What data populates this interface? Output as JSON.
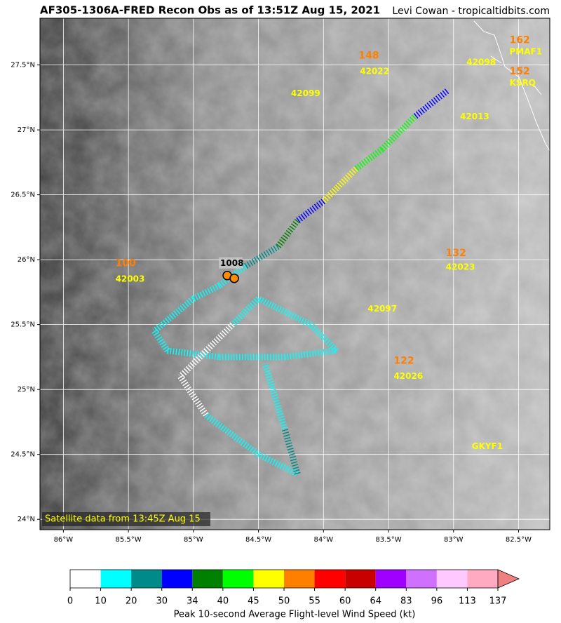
{
  "chart_data": {
    "type": "recon-map",
    "title": "AF305-1306A-FRED Recon Obs as of 13:51Z Aug 15, 2021",
    "credit": "Levi Cowan - tropicaltidbits.com",
    "note": "Satellite data from 13:45Z Aug 15",
    "xlim": [
      -86.18,
      -82.26
    ],
    "ylim": [
      23.92,
      27.86
    ],
    "xticks": [
      {
        "value": -86,
        "label": "86°W"
      },
      {
        "value": -85.5,
        "label": "85.5°W"
      },
      {
        "value": -85,
        "label": "85°W"
      },
      {
        "value": -84.5,
        "label": "84.5°W"
      },
      {
        "value": -84,
        "label": "84°W"
      },
      {
        "value": -83.5,
        "label": "83.5°W"
      },
      {
        "value": -83,
        "label": "83°W"
      },
      {
        "value": -82.5,
        "label": "82.5°W"
      }
    ],
    "yticks": [
      {
        "value": 24,
        "label": "24°N"
      },
      {
        "value": 24.5,
        "label": "24.5°N"
      },
      {
        "value": 25,
        "label": "25°N"
      },
      {
        "value": 25.5,
        "label": "25.5°N"
      },
      {
        "value": 26,
        "label": "26°N"
      },
      {
        "value": 26.5,
        "label": "26.5°N"
      },
      {
        "value": 27,
        "label": "27°N"
      },
      {
        "value": 27.5,
        "label": "27.5°N"
      }
    ],
    "grid": true,
    "stations": [
      {
        "name": "42098",
        "lon": -82.9,
        "lat": 27.52
      },
      {
        "name": "42022",
        "lon": -83.72,
        "lat": 27.45
      },
      {
        "name": "42099",
        "lon": -84.25,
        "lat": 27.28
      },
      {
        "name": "42013",
        "lon": -82.95,
        "lat": 27.1
      },
      {
        "name": "PMAF1",
        "lon": -82.57,
        "lat": 27.6
      },
      {
        "name": "KSRQ",
        "lon": -82.57,
        "lat": 27.36
      },
      {
        "name": "42023",
        "lon": -83.06,
        "lat": 25.94
      },
      {
        "name": "42097",
        "lon": -83.66,
        "lat": 25.62
      },
      {
        "name": "42026",
        "lon": -83.46,
        "lat": 25.1
      },
      {
        "name": "42003",
        "lon": -85.6,
        "lat": 25.85
      },
      {
        "name": "GKYF1",
        "lon": -82.86,
        "lat": 24.56
      }
    ],
    "station_values": [
      {
        "value": 148,
        "lon": -83.73,
        "lat": 27.57
      },
      {
        "value": 162,
        "lon": -82.57,
        "lat": 27.69
      },
      {
        "value": 152,
        "lon": -82.57,
        "lat": 27.45
      },
      {
        "value": 132,
        "lon": -83.06,
        "lat": 26.05
      },
      {
        "value": 122,
        "lon": -83.46,
        "lat": 25.22
      },
      {
        "value": 100,
        "lon": -85.6,
        "lat": 25.97
      }
    ],
    "center_pressure": {
      "value": 1008,
      "lon": -84.74,
      "lat": 25.97
    },
    "track": {
      "lon": [
        -83.05,
        -83.3,
        -83.55,
        -83.75,
        -83.9,
        -84.0,
        -84.2,
        -84.35,
        -84.6,
        -84.8,
        -85.0,
        -85.3,
        -85.2,
        -84.8,
        -84.3,
        -83.9,
        -84.1,
        -84.5,
        -84.7,
        -84.9,
        -85.1,
        -84.9,
        -84.5,
        -84.2,
        -84.3,
        -84.45
      ],
      "lat": [
        27.3,
        27.1,
        26.85,
        26.7,
        26.55,
        26.45,
        26.3,
        26.1,
        25.95,
        25.8,
        25.7,
        25.45,
        25.3,
        25.25,
        25.25,
        25.3,
        25.5,
        25.7,
        25.5,
        25.3,
        25.1,
        24.8,
        24.5,
        24.35,
        24.7,
        25.2
      ],
      "wind": [
        30,
        40,
        42,
        47,
        46,
        32,
        36,
        22,
        18,
        15,
        14,
        14,
        12,
        12,
        15,
        15,
        15,
        14,
        8,
        8,
        8,
        10,
        15,
        22,
        15,
        12
      ]
    },
    "colorbar": {
      "label": "Peak 10-second Average Flight-level Wind Speed (kt)",
      "bounds": [
        0,
        10,
        20,
        30,
        34,
        40,
        45,
        50,
        55,
        60,
        64,
        83,
        96,
        113,
        137
      ],
      "colors": [
        "#ffffff",
        "#00ffff",
        "#008b8b",
        "#0000ff",
        "#008000",
        "#00ff00",
        "#ffff00",
        "#ff7f00",
        "#ff0000",
        "#c80000",
        "#a000ff",
        "#d070ff",
        "#ffc8ff",
        "#ffaac0"
      ],
      "extend_color": "#f08080"
    }
  }
}
